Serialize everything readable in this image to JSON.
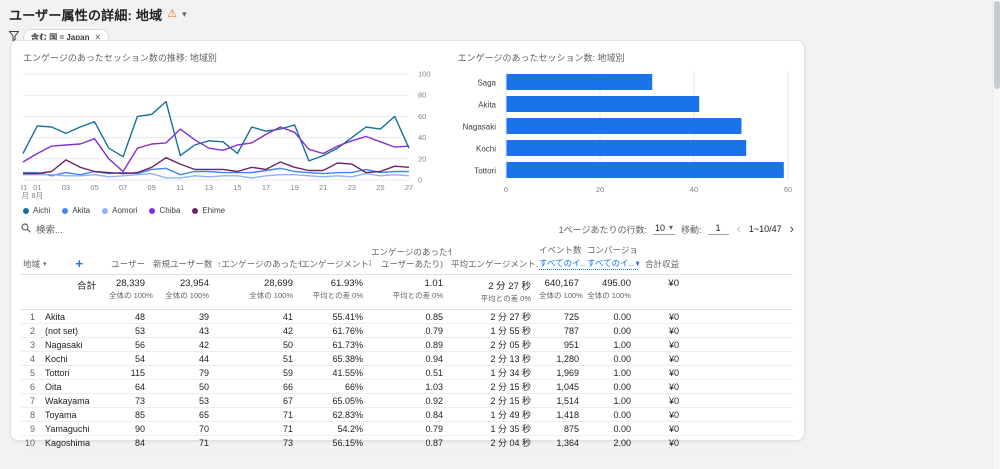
{
  "header": {
    "title": "ユーザー属性の詳細: 地域",
    "filter_chip": "含む 国 = Japan"
  },
  "colors": {
    "accent": "#1a73e8",
    "grid": "#e8eaed",
    "axis_text": "#80868b"
  },
  "chart_data": [
    {
      "type": "line",
      "title": "エンゲージのあったセッション数の推移: 地域別",
      "ylabel": "",
      "ylim": [
        0,
        100
      ],
      "y_ticks": [
        0,
        20,
        40,
        60,
        80,
        100
      ],
      "x_ticks": [
        {
          "i": 0,
          "label": "31",
          "sub": "7月"
        },
        {
          "i": 1,
          "label": "01",
          "sub": "8月"
        },
        {
          "i": 3,
          "label": "03"
        },
        {
          "i": 5,
          "label": "05"
        },
        {
          "i": 7,
          "label": "07"
        },
        {
          "i": 9,
          "label": "09"
        },
        {
          "i": 11,
          "label": "11"
        },
        {
          "i": 13,
          "label": "13"
        },
        {
          "i": 15,
          "label": "15"
        },
        {
          "i": 17,
          "label": "17"
        },
        {
          "i": 19,
          "label": "19"
        },
        {
          "i": 21,
          "label": "21"
        },
        {
          "i": 23,
          "label": "23"
        },
        {
          "i": 25,
          "label": "25"
        },
        {
          "i": 27,
          "label": "27"
        }
      ],
      "series": [
        {
          "name": "Aichi",
          "color": "#15719b",
          "values": [
            25,
            51,
            50,
            44,
            50,
            55,
            30,
            22,
            60,
            62,
            74,
            23,
            33,
            37,
            36,
            25,
            50,
            46,
            48,
            52,
            18,
            23,
            30,
            40,
            50,
            48,
            60,
            30
          ]
        },
        {
          "name": "Akita",
          "color": "#4285f4",
          "values": [
            7,
            7,
            4,
            7,
            5,
            8,
            6,
            7,
            6,
            10,
            11,
            5,
            8,
            8,
            7,
            7,
            7,
            9,
            11,
            8,
            7,
            6,
            7,
            7,
            10,
            7,
            8,
            8
          ]
        },
        {
          "name": "Aomori",
          "color": "#8ab4f8",
          "values": [
            5,
            5,
            5,
            4,
            4,
            5,
            3,
            4,
            5,
            6,
            2,
            2,
            4,
            3,
            4,
            4,
            2,
            4,
            5,
            5,
            4,
            3,
            4,
            3,
            6,
            4,
            5,
            4
          ]
        },
        {
          "name": "Chiba",
          "color": "#8430ce",
          "values": [
            17,
            25,
            32,
            33,
            34,
            39,
            20,
            8,
            30,
            34,
            35,
            48,
            38,
            30,
            28,
            33,
            35,
            43,
            50,
            45,
            29,
            25,
            32,
            37,
            41,
            36,
            31,
            32
          ]
        },
        {
          "name": "Ehime",
          "color": "#6e2466",
          "values": [
            6,
            6,
            8,
            19,
            12,
            8,
            7,
            6,
            7,
            12,
            21,
            15,
            10,
            10,
            10,
            8,
            12,
            10,
            17,
            12,
            9,
            9,
            16,
            15,
            7,
            8,
            13,
            12
          ]
        }
      ]
    },
    {
      "type": "bar",
      "orientation": "horizontal",
      "title": "エンゲージのあったセッション数: 地域別",
      "categories": [
        "Saga",
        "Akita",
        "Nagasaki",
        "Kochi",
        "Tottori"
      ],
      "values": [
        31,
        41,
        50,
        51,
        59
      ],
      "xlim": [
        0,
        60
      ],
      "x_ticks": [
        0,
        20,
        40,
        60
      ],
      "bar_color": "#1a73e8"
    }
  ],
  "table": {
    "search_placeholder": "検索...",
    "pagination": {
      "rows_label": "1ページあたりの行数:",
      "rows_value": "10",
      "goto_label": "移動:",
      "goto_value": "1",
      "range": "1~10/47"
    },
    "columns": [
      {
        "label": "地域",
        "align": "left"
      },
      {
        "label": "ユーザー"
      },
      {
        "label": "新規ユーザー数"
      },
      {
        "label": "↑エンゲージのあったセ.."
      },
      {
        "label": "エンゲージメント率"
      },
      {
        "label": "エンゲージのあったセ..",
        "sub": "ユーザーあたり)"
      },
      {
        "label": "平均エンゲージメント.."
      },
      {
        "label": "イベント数",
        "sub": "すべてのイ.. ▾",
        "sub_link": true
      },
      {
        "label": "コンバージョン",
        "sub": "すべてのイ.. ▾",
        "sub_link": true
      },
      {
        "label": "合計収益"
      }
    ],
    "totals": {
      "label": "合計",
      "cells": [
        [
          "28,339",
          "全体の 100%"
        ],
        [
          "23,954",
          "全体の 100%"
        ],
        [
          "28,699",
          "全体の 100%"
        ],
        [
          "61.93%",
          "平均との差 0%"
        ],
        [
          "1.01",
          "平均との差 0%"
        ],
        [
          "2 分 27 秒",
          "平均との差 0%"
        ],
        [
          "640,167",
          "全体の 100%"
        ],
        [
          "495.00",
          "全体の 100%"
        ],
        [
          "¥0",
          ""
        ]
      ]
    },
    "rows": [
      {
        "n": "1",
        "name": "Akita",
        "cells": [
          "48",
          "39",
          "41",
          "55.41%",
          "0.85",
          "2 分 27 秒",
          "725",
          "0.00",
          "¥0"
        ]
      },
      {
        "n": "2",
        "name": "(not set)",
        "cells": [
          "53",
          "43",
          "42",
          "61.76%",
          "0.79",
          "1 分 55 秒",
          "787",
          "0.00",
          "¥0"
        ]
      },
      {
        "n": "3",
        "name": "Nagasaki",
        "cells": [
          "56",
          "42",
          "50",
          "61.73%",
          "0.89",
          "2 分 05 秒",
          "951",
          "1.00",
          "¥0"
        ]
      },
      {
        "n": "4",
        "name": "Kochi",
        "cells": [
          "54",
          "44",
          "51",
          "65.38%",
          "0.94",
          "2 分 13 秒",
          "1,280",
          "0.00",
          "¥0"
        ]
      },
      {
        "n": "5",
        "name": "Tottori",
        "cells": [
          "115",
          "79",
          "59",
          "41.55%",
          "0.51",
          "1 分 34 秒",
          "1,969",
          "1.00",
          "¥0"
        ]
      },
      {
        "n": "6",
        "name": "Oita",
        "cells": [
          "64",
          "50",
          "66",
          "66%",
          "1.03",
          "2 分 15 秒",
          "1,045",
          "0.00",
          "¥0"
        ]
      },
      {
        "n": "7",
        "name": "Wakayama",
        "cells": [
          "73",
          "53",
          "67",
          "65.05%",
          "0.92",
          "2 分 15 秒",
          "1,514",
          "1.00",
          "¥0"
        ]
      },
      {
        "n": "8",
        "name": "Toyama",
        "cells": [
          "85",
          "65",
          "71",
          "62.83%",
          "0.84",
          "1 分 49 秒",
          "1,418",
          "0.00",
          "¥0"
        ]
      },
      {
        "n": "9",
        "name": "Yamaguchi",
        "cells": [
          "90",
          "70",
          "71",
          "54.2%",
          "0.79",
          "1 分 35 秒",
          "875",
          "0.00",
          "¥0"
        ]
      },
      {
        "n": "10",
        "name": "Kagoshima",
        "cells": [
          "84",
          "71",
          "73",
          "56.15%",
          "0.87",
          "2 分 04 秒",
          "1,364",
          "2.00",
          "¥0"
        ]
      }
    ]
  }
}
